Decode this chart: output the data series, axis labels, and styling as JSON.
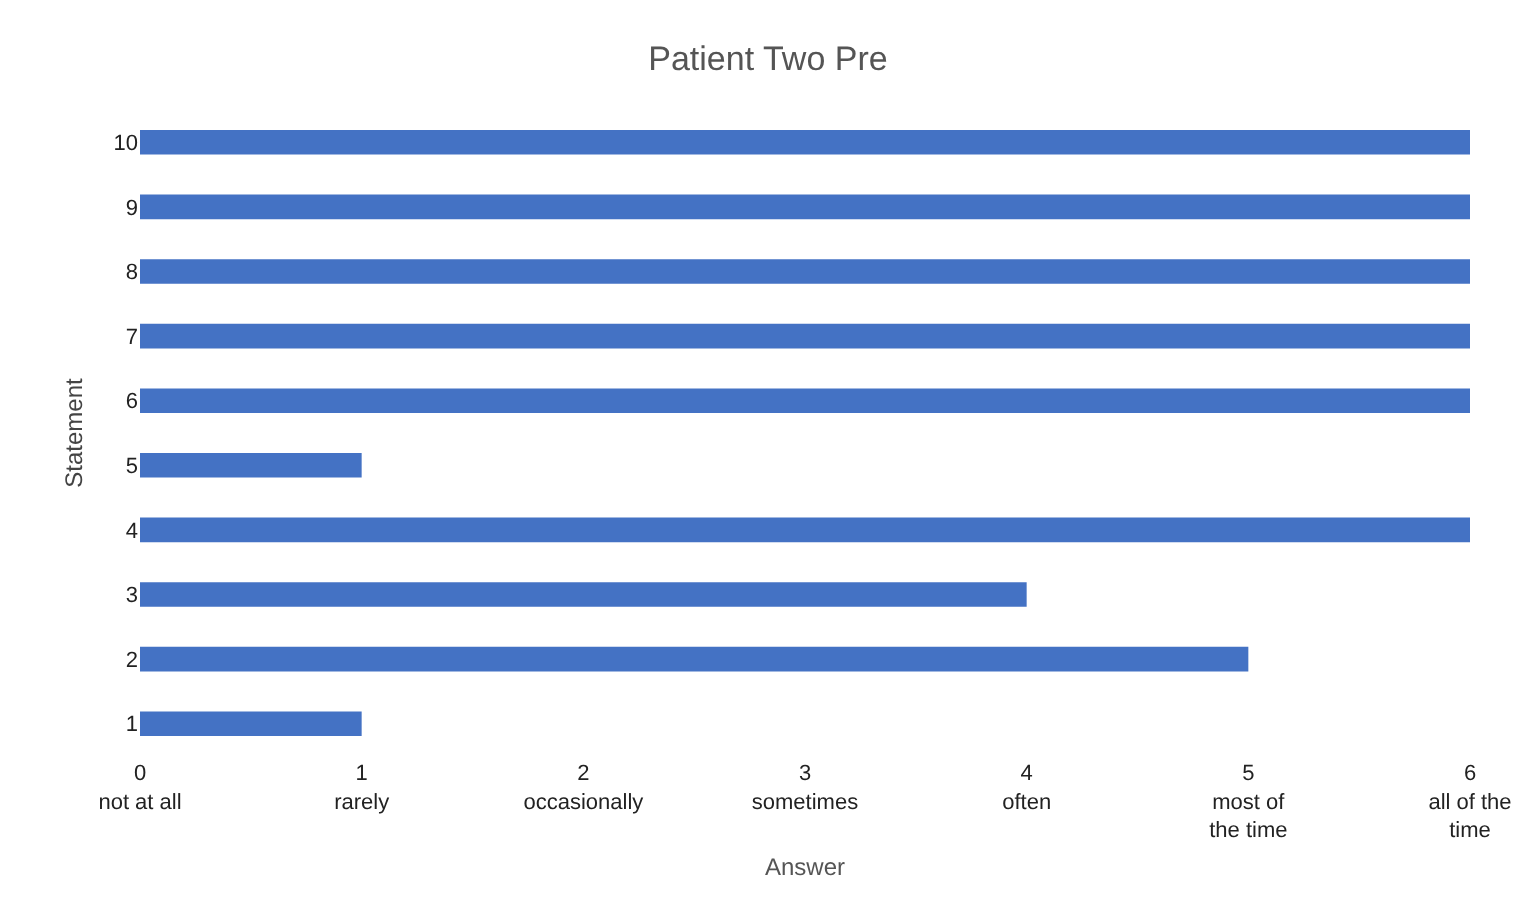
{
  "chart_data": {
    "type": "bar",
    "orientation": "horizontal",
    "title": "Patient Two Pre",
    "xlabel": "Answer",
    "ylabel": "Statement",
    "categories": [
      "10",
      "9",
      "8",
      "7",
      "6",
      "5",
      "4",
      "3",
      "2",
      "1"
    ],
    "values": [
      6,
      6,
      6,
      6,
      6,
      1,
      6,
      4,
      5,
      1
    ],
    "color": "#4472c4",
    "xlim": [
      0,
      6
    ],
    "xticks": [
      {
        "value": 0,
        "label": "0\nnot at all"
      },
      {
        "value": 1,
        "label": "1\nrarely"
      },
      {
        "value": 2,
        "label": "2\noccasionally"
      },
      {
        "value": 3,
        "label": "3\nsometimes"
      },
      {
        "value": 4,
        "label": "4\noften"
      },
      {
        "value": 5,
        "label": "5\nmost of\nthe time"
      },
      {
        "value": 6,
        "label": "6\nall of the\ntime"
      }
    ],
    "grid": false
  }
}
